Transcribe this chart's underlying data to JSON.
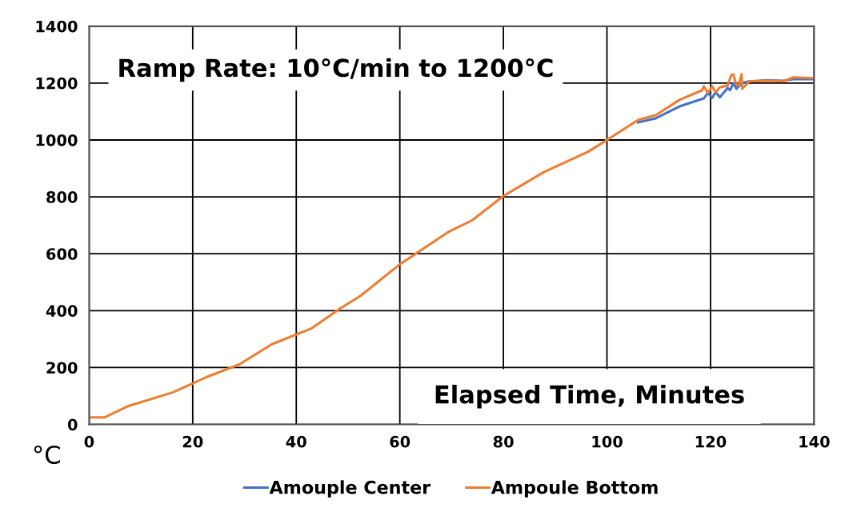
{
  "chart_data": {
    "type": "line",
    "title": "Ramp Rate: 10°C/min to 1200°C",
    "xlabel": "Elapsed Time, Minutes",
    "ylabel": "°C",
    "xlim": [
      0,
      140
    ],
    "xticks": [
      0,
      20,
      40,
      60,
      80,
      100,
      120,
      140
    ],
    "ylim": [
      0,
      1400
    ],
    "yticks": [
      0,
      200,
      400,
      600,
      800,
      1000,
      1200,
      1400
    ],
    "grid": true,
    "legend": "bottom",
    "series": [
      {
        "name": "Amouple Center",
        "color": "#4472c4",
        "x": [
          106,
          109.4,
          114,
          118.7,
          119.5,
          120.3,
          121,
          121.8,
          123.3,
          123.8,
          124.4,
          125,
          126,
          127.5,
          131,
          134,
          136,
          140
        ],
        "values": [
          1062,
          1076,
          1118,
          1146,
          1166,
          1148,
          1168,
          1150,
          1183,
          1175,
          1200,
          1180,
          1200,
          1206,
          1210,
          1208,
          1214,
          1214
        ]
      },
      {
        "name": "Ampoule Bottom",
        "color": "#ed7d31",
        "x": [
          0,
          1.5,
          3,
          7.6,
          16.2,
          23,
          29,
          35.3,
          43,
          48.5,
          52.3,
          60,
          69.3,
          74,
          80,
          87.8,
          96.3,
          100,
          106,
          109.4,
          114,
          118.4,
          118.7,
          119.5,
          120.3,
          121,
          121.8,
          123.3,
          124,
          124.4,
          125,
          125.5,
          126,
          126.1,
          127.5,
          131,
          134,
          136,
          140
        ],
        "values": [
          25,
          25,
          25,
          65,
          113,
          169,
          211,
          282,
          338,
          408,
          451,
          563,
          676,
          718,
          803,
          887,
          958,
          1000,
          1070,
          1087,
          1141,
          1175,
          1189,
          1165,
          1189,
          1168,
          1185,
          1192,
          1228,
          1231,
          1192,
          1195,
          1231,
          1180,
          1206,
          1208,
          1206,
          1220,
          1217
        ]
      }
    ]
  }
}
